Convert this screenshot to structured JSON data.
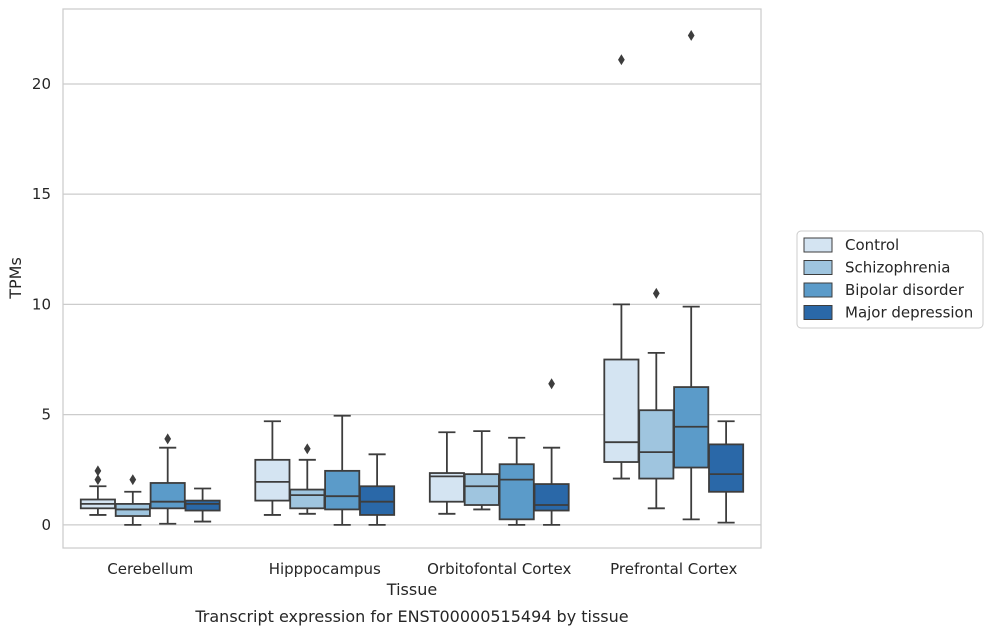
{
  "caption": "Transcript expression for ENST00000515494 by tissue",
  "chart_data": {
    "type": "box",
    "title": "",
    "xlabel": "Tissue",
    "ylabel": "TPMs",
    "ylim": [
      -1.05,
      23.4
    ],
    "yticks": [
      0,
      5,
      10,
      15,
      20
    ],
    "grid": true,
    "legend_position": "right",
    "categories": [
      "Cerebellum",
      "Hipppocampus",
      "Orbitofontal Cortex",
      "Prefrontal Cortex"
    ],
    "series": [
      {
        "name": "Control",
        "color": "#d4e4f2",
        "boxes": [
          {
            "whislo": 0.45,
            "q1": 0.75,
            "med": 0.95,
            "q3": 1.15,
            "whishi": 1.75,
            "fliers": [
              2.05,
              2.45
            ]
          },
          {
            "whislo": 0.45,
            "q1": 1.1,
            "med": 1.95,
            "q3": 2.95,
            "whishi": 4.7,
            "fliers": []
          },
          {
            "whislo": 0.5,
            "q1": 1.05,
            "med": 2.2,
            "q3": 2.35,
            "whishi": 4.2,
            "fliers": []
          },
          {
            "whislo": 2.1,
            "q1": 2.85,
            "med": 3.75,
            "q3": 7.5,
            "whishi": 10.0,
            "fliers": [
              21.1
            ]
          }
        ]
      },
      {
        "name": "Schizophrenia",
        "color": "#9fc5df",
        "boxes": [
          {
            "whislo": 0.0,
            "q1": 0.4,
            "med": 0.7,
            "q3": 0.95,
            "whishi": 1.5,
            "fliers": [
              2.05
            ]
          },
          {
            "whislo": 0.5,
            "q1": 0.75,
            "med": 1.35,
            "q3": 1.6,
            "whishi": 2.95,
            "fliers": [
              3.45
            ]
          },
          {
            "whislo": 0.7,
            "q1": 0.9,
            "med": 1.75,
            "q3": 2.3,
            "whishi": 4.25,
            "fliers": []
          },
          {
            "whislo": 0.75,
            "q1": 2.1,
            "med": 3.3,
            "q3": 5.2,
            "whishi": 7.8,
            "fliers": [
              10.5
            ]
          }
        ]
      },
      {
        "name": "Bipolar disorder",
        "color": "#5b9bc9",
        "boxes": [
          {
            "whislo": 0.05,
            "q1": 0.75,
            "med": 1.05,
            "q3": 1.9,
            "whishi": 3.5,
            "fliers": [
              3.9
            ]
          },
          {
            "whislo": 0.0,
            "q1": 0.7,
            "med": 1.3,
            "q3": 2.45,
            "whishi": 4.95,
            "fliers": []
          },
          {
            "whislo": 0.0,
            "q1": 0.25,
            "med": 2.05,
            "q3": 2.75,
            "whishi": 3.95,
            "fliers": []
          },
          {
            "whislo": 0.25,
            "q1": 2.6,
            "med": 4.45,
            "q3": 6.25,
            "whishi": 9.9,
            "fliers": [
              22.2
            ]
          }
        ]
      },
      {
        "name": "Major depression",
        "color": "#2a68a8",
        "boxes": [
          {
            "whislo": 0.15,
            "q1": 0.65,
            "med": 0.95,
            "q3": 1.1,
            "whishi": 1.65,
            "fliers": []
          },
          {
            "whislo": 0.0,
            "q1": 0.45,
            "med": 1.05,
            "q3": 1.75,
            "whishi": 3.2,
            "fliers": []
          },
          {
            "whislo": 0.0,
            "q1": 0.65,
            "med": 0.9,
            "q3": 1.85,
            "whishi": 3.5,
            "fliers": [
              6.4
            ]
          },
          {
            "whislo": 0.1,
            "q1": 1.5,
            "med": 2.3,
            "q3": 3.65,
            "whishi": 4.7,
            "fliers": []
          }
        ]
      }
    ]
  }
}
